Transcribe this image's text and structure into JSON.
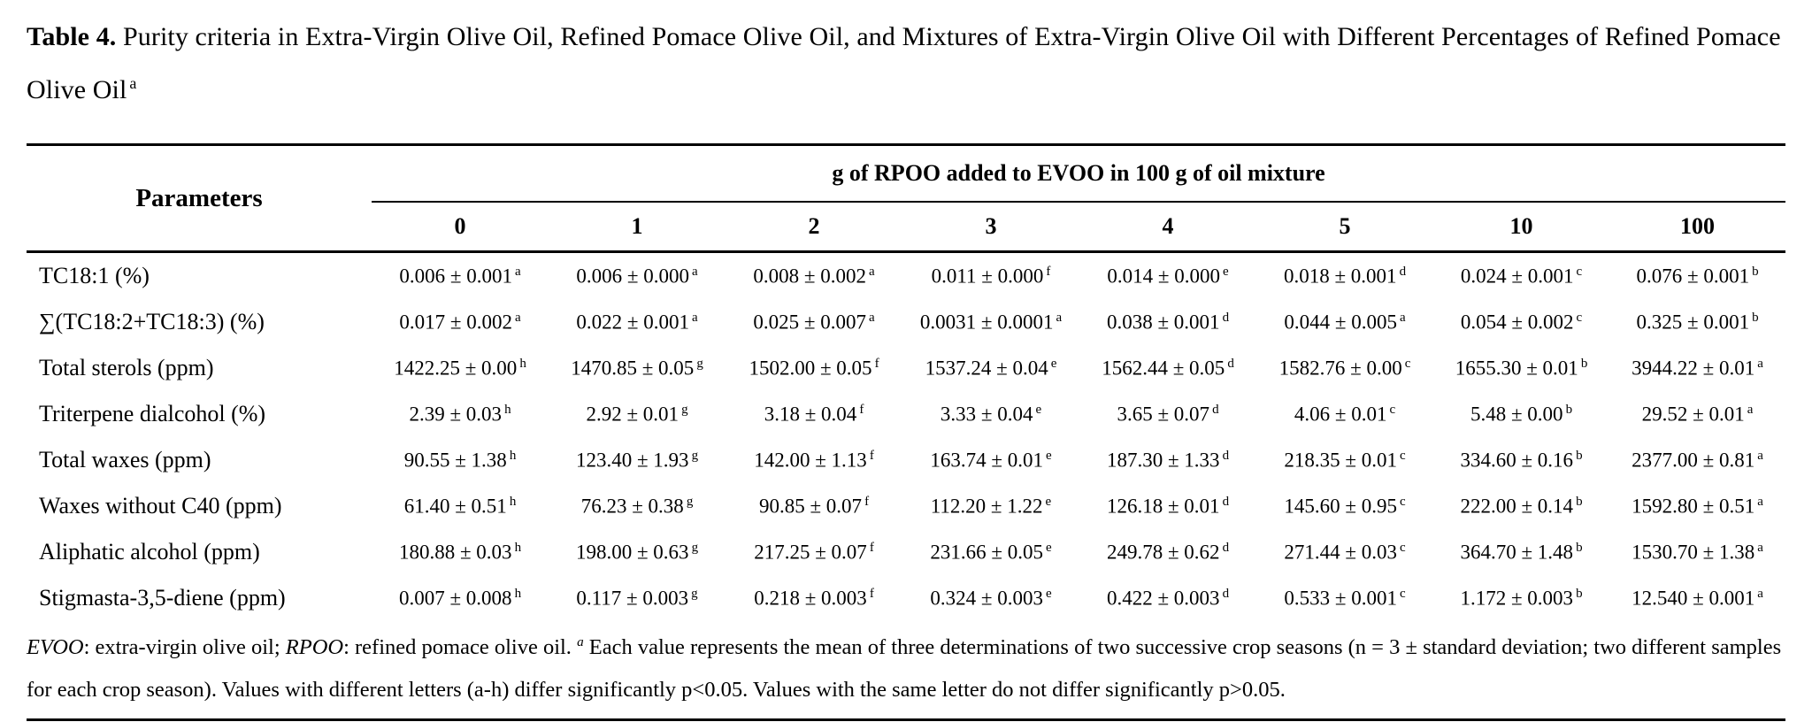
{
  "title": {
    "label": "Table 4.",
    "text": " Purity criteria in Extra-Virgin Olive Oil, Refined Pomace Olive Oil, and Mixtures of Extra-Virgin Olive Oil with Different Percentages of Refined Pomace Olive Oil",
    "superscript": "a"
  },
  "table": {
    "params_header": "Parameters",
    "group_header": "g of RPOO added to EVOO in 100 g of oil mixture",
    "columns": [
      "0",
      "1",
      "2",
      "3",
      "4",
      "5",
      "10",
      "100"
    ],
    "rows": [
      {
        "parameter": "TC18:1 (%)",
        "cells": [
          {
            "value": "0.006 ± 0.001",
            "note": "a"
          },
          {
            "value": "0.006 ± 0.000",
            "note": "a"
          },
          {
            "value": "0.008 ± 0.002",
            "note": "a"
          },
          {
            "value": "0.011 ± 0.000",
            "note": "f"
          },
          {
            "value": "0.014 ± 0.000",
            "note": "e"
          },
          {
            "value": "0.018 ± 0.001",
            "note": "d"
          },
          {
            "value": "0.024 ± 0.001",
            "note": "c"
          },
          {
            "value": "0.076 ± 0.001",
            "note": "b"
          }
        ]
      },
      {
        "parameter": "∑(TC18:2+TC18:3) (%)",
        "cells": [
          {
            "value": "0.017 ± 0.002",
            "note": "a"
          },
          {
            "value": "0.022 ± 0.001",
            "note": "a"
          },
          {
            "value": "0.025 ± 0.007",
            "note": "a"
          },
          {
            "value": "0.0031 ± 0.0001",
            "note": "a"
          },
          {
            "value": "0.038 ± 0.001",
            "note": "d"
          },
          {
            "value": "0.044 ± 0.005",
            "note": "a"
          },
          {
            "value": "0.054 ± 0.002",
            "note": "c"
          },
          {
            "value": "0.325 ± 0.001",
            "note": "b"
          }
        ]
      },
      {
        "parameter": "Total sterols (ppm)",
        "cells": [
          {
            "value": "1422.25 ± 0.00",
            "note": "h"
          },
          {
            "value": "1470.85 ± 0.05",
            "note": "g"
          },
          {
            "value": "1502.00 ± 0.05",
            "note": "f"
          },
          {
            "value": "1537.24 ± 0.04",
            "note": "e"
          },
          {
            "value": "1562.44 ± 0.05",
            "note": "d"
          },
          {
            "value": "1582.76 ± 0.00",
            "note": "c"
          },
          {
            "value": "1655.30 ± 0.01",
            "note": "b"
          },
          {
            "value": "3944.22 ± 0.01",
            "note": "a"
          }
        ]
      },
      {
        "parameter": "Triterpene dialcohol (%)",
        "cells": [
          {
            "value": "2.39 ± 0.03",
            "note": "h"
          },
          {
            "value": "2.92 ± 0.01",
            "note": "g"
          },
          {
            "value": "3.18 ± 0.04",
            "note": "f"
          },
          {
            "value": "3.33 ± 0.04",
            "note": "e"
          },
          {
            "value": "3.65 ± 0.07",
            "note": "d"
          },
          {
            "value": "4.06 ± 0.01",
            "note": "c"
          },
          {
            "value": "5.48 ± 0.00",
            "note": "b"
          },
          {
            "value": "29.52 ± 0.01",
            "note": "a"
          }
        ]
      },
      {
        "parameter": "Total waxes (ppm)",
        "cells": [
          {
            "value": "90.55 ± 1.38",
            "note": "h"
          },
          {
            "value": "123.40 ± 1.93",
            "note": "g"
          },
          {
            "value": "142.00 ± 1.13",
            "note": "f"
          },
          {
            "value": "163.74 ± 0.01",
            "note": "e"
          },
          {
            "value": "187.30 ± 1.33",
            "note": "d"
          },
          {
            "value": "218.35 ± 0.01",
            "note": "c"
          },
          {
            "value": "334.60 ± 0.16",
            "note": "b"
          },
          {
            "value": "2377.00 ± 0.81",
            "note": "a"
          }
        ]
      },
      {
        "parameter": "Waxes without C40 (ppm)",
        "cells": [
          {
            "value": "61.40 ± 0.51",
            "note": "h"
          },
          {
            "value": "76.23 ± 0.38",
            "note": "g"
          },
          {
            "value": "90.85 ± 0.07",
            "note": "f"
          },
          {
            "value": "112.20 ± 1.22",
            "note": "e"
          },
          {
            "value": "126.18 ± 0.01",
            "note": "d"
          },
          {
            "value": "145.60 ± 0.95",
            "note": "c"
          },
          {
            "value": "222.00 ± 0.14",
            "note": "b"
          },
          {
            "value": "1592.80 ± 0.51",
            "note": "a"
          }
        ]
      },
      {
        "parameter": "Aliphatic alcohol (ppm)",
        "cells": [
          {
            "value": "180.88 ± 0.03",
            "note": "h"
          },
          {
            "value": "198.00 ± 0.63",
            "note": "g"
          },
          {
            "value": "217.25 ± 0.07",
            "note": "f"
          },
          {
            "value": "231.66 ± 0.05",
            "note": "e"
          },
          {
            "value": "249.78 ± 0.62",
            "note": "d"
          },
          {
            "value": "271.44 ± 0.03",
            "note": "c"
          },
          {
            "value": "364.70 ± 1.48",
            "note": "b"
          },
          {
            "value": "1530.70 ± 1.38",
            "note": "a"
          }
        ]
      },
      {
        "parameter": "Stigmasta-3,5-diene (ppm)",
        "cells": [
          {
            "value": "0.007 ± 0.008",
            "note": "h"
          },
          {
            "value": "0.117 ± 0.003",
            "note": "g"
          },
          {
            "value": "0.218 ± 0.003",
            "note": "f"
          },
          {
            "value": "0.324 ± 0.003",
            "note": "e"
          },
          {
            "value": "0.422 ± 0.003",
            "note": "d"
          },
          {
            "value": "0.533 ± 0.001",
            "note": "c"
          },
          {
            "value": "1.172 ± 0.003",
            "note": "b"
          },
          {
            "value": "12.540 ± 0.001",
            "note": "a"
          }
        ]
      }
    ]
  },
  "footnote": {
    "segments": [
      {
        "text": "EVOO",
        "style": "italic"
      },
      {
        "text": ": extra-virgin olive oil; ",
        "style": "plain"
      },
      {
        "text": "RPOO",
        "style": "italic"
      },
      {
        "text": ": refined pomace olive oil. ",
        "style": "plain"
      },
      {
        "text": "a",
        "style": "sup-italic"
      },
      {
        "text": " Each value represents the mean of three determinations of two successive crop seasons (n = 3 ± standard deviation; two different samples for each crop season). Values with different letters (a-h) differ significantly p<0.05. Values with the same letter do not differ significantly p>0.05.",
        "style": "plain"
      }
    ]
  }
}
